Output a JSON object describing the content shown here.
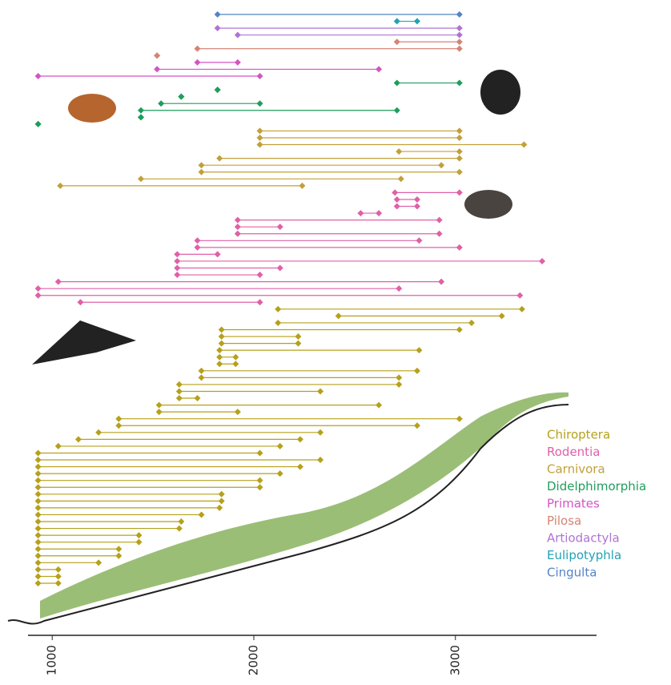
{
  "chart_data": {
    "type": "range",
    "xlim": [
      880,
      3700
    ],
    "xticks": [
      1000,
      2000,
      3000
    ],
    "series": [
      {
        "name": "Chiroptera",
        "color": "#b5a11b",
        "values": [
          [
            2120,
            3330
          ],
          [
            2420,
            3230
          ],
          [
            2120,
            3080
          ],
          [
            1840,
            3020
          ],
          [
            1840,
            2220
          ],
          [
            1840,
            2220
          ],
          [
            1830,
            2820
          ],
          [
            1830,
            1910
          ],
          [
            1830,
            1910
          ],
          [
            1740,
            2810
          ],
          [
            1740,
            2720
          ],
          [
            1630,
            2720
          ],
          [
            1630,
            2330
          ],
          [
            1630,
            1720
          ],
          [
            1530,
            2620
          ],
          [
            1530,
            1920
          ],
          [
            1330,
            3020
          ],
          [
            1330,
            2810
          ],
          [
            1230,
            2330
          ],
          [
            1130,
            2230
          ],
          [
            1030,
            2130
          ],
          [
            930,
            2030
          ],
          [
            930,
            2330
          ],
          [
            930,
            2230
          ],
          [
            930,
            2130
          ],
          [
            930,
            2030
          ],
          [
            930,
            2030
          ],
          [
            930,
            1840
          ],
          [
            930,
            1840
          ],
          [
            930,
            1830
          ],
          [
            930,
            1740
          ],
          [
            930,
            1640
          ],
          [
            930,
            1630
          ],
          [
            930,
            1430
          ],
          [
            930,
            1430
          ],
          [
            930,
            1330
          ],
          [
            930,
            1330
          ],
          [
            930,
            1230
          ],
          [
            930,
            1030
          ],
          [
            930,
            1030
          ],
          [
            930,
            1030
          ]
        ]
      },
      {
        "name": "Rodentia",
        "color": "#e060a8",
        "values": [
          [
            2700,
            3020
          ],
          [
            2710,
            2810
          ],
          [
            2710,
            2810
          ],
          [
            2530,
            2620
          ],
          [
            1920,
            2920
          ],
          [
            1920,
            2130
          ],
          [
            1920,
            2920
          ],
          [
            1720,
            2820
          ],
          [
            1720,
            3020
          ],
          [
            1620,
            1820
          ],
          [
            1620,
            3430
          ],
          [
            1620,
            2130
          ],
          [
            1620,
            2030
          ],
          [
            1030,
            2930
          ],
          [
            930,
            2720
          ],
          [
            930,
            3320
          ],
          [
            1140,
            2030
          ]
        ]
      },
      {
        "name": "Carnivora",
        "color": "#c2a03a",
        "values": [
          [
            2030,
            3020
          ],
          [
            2030,
            3020
          ],
          [
            2030,
            3340
          ],
          [
            2720,
            3020
          ],
          [
            1830,
            3020
          ],
          [
            1740,
            2930
          ],
          [
            1740,
            3020
          ],
          [
            1440,
            2730
          ],
          [
            1040,
            2240
          ]
        ]
      },
      {
        "name": "Didelphimorphia",
        "color": "#1f9e5c",
        "values": [
          [
            2710,
            3020
          ],
          [
            1820,
            1820
          ],
          [
            1640,
            1640
          ],
          [
            1540,
            2030
          ],
          [
            1440,
            2710
          ],
          [
            1440,
            1440
          ],
          [
            930,
            930
          ]
        ]
      },
      {
        "name": "Primates",
        "color": "#d454c4",
        "values": [
          [
            1720,
            1920
          ],
          [
            1520,
            2620
          ],
          [
            930,
            2030
          ]
        ]
      },
      {
        "name": "Pilosa",
        "color": "#d48474",
        "values": [
          [
            2710,
            3020
          ],
          [
            1720,
            3020
          ],
          [
            1520,
            1520
          ]
        ]
      },
      {
        "name": "Artiodactyla",
        "color": "#b074d4",
        "values": [
          [
            1820,
            3020
          ],
          [
            1920,
            3020
          ]
        ]
      },
      {
        "name": "Eulipotyphla",
        "color": "#22a2b4",
        "values": [
          [
            2710,
            2810
          ]
        ]
      },
      {
        "name": "Cingulta",
        "color": "#5584c4",
        "values": [
          [
            1820,
            3020
          ]
        ]
      }
    ]
  }
}
